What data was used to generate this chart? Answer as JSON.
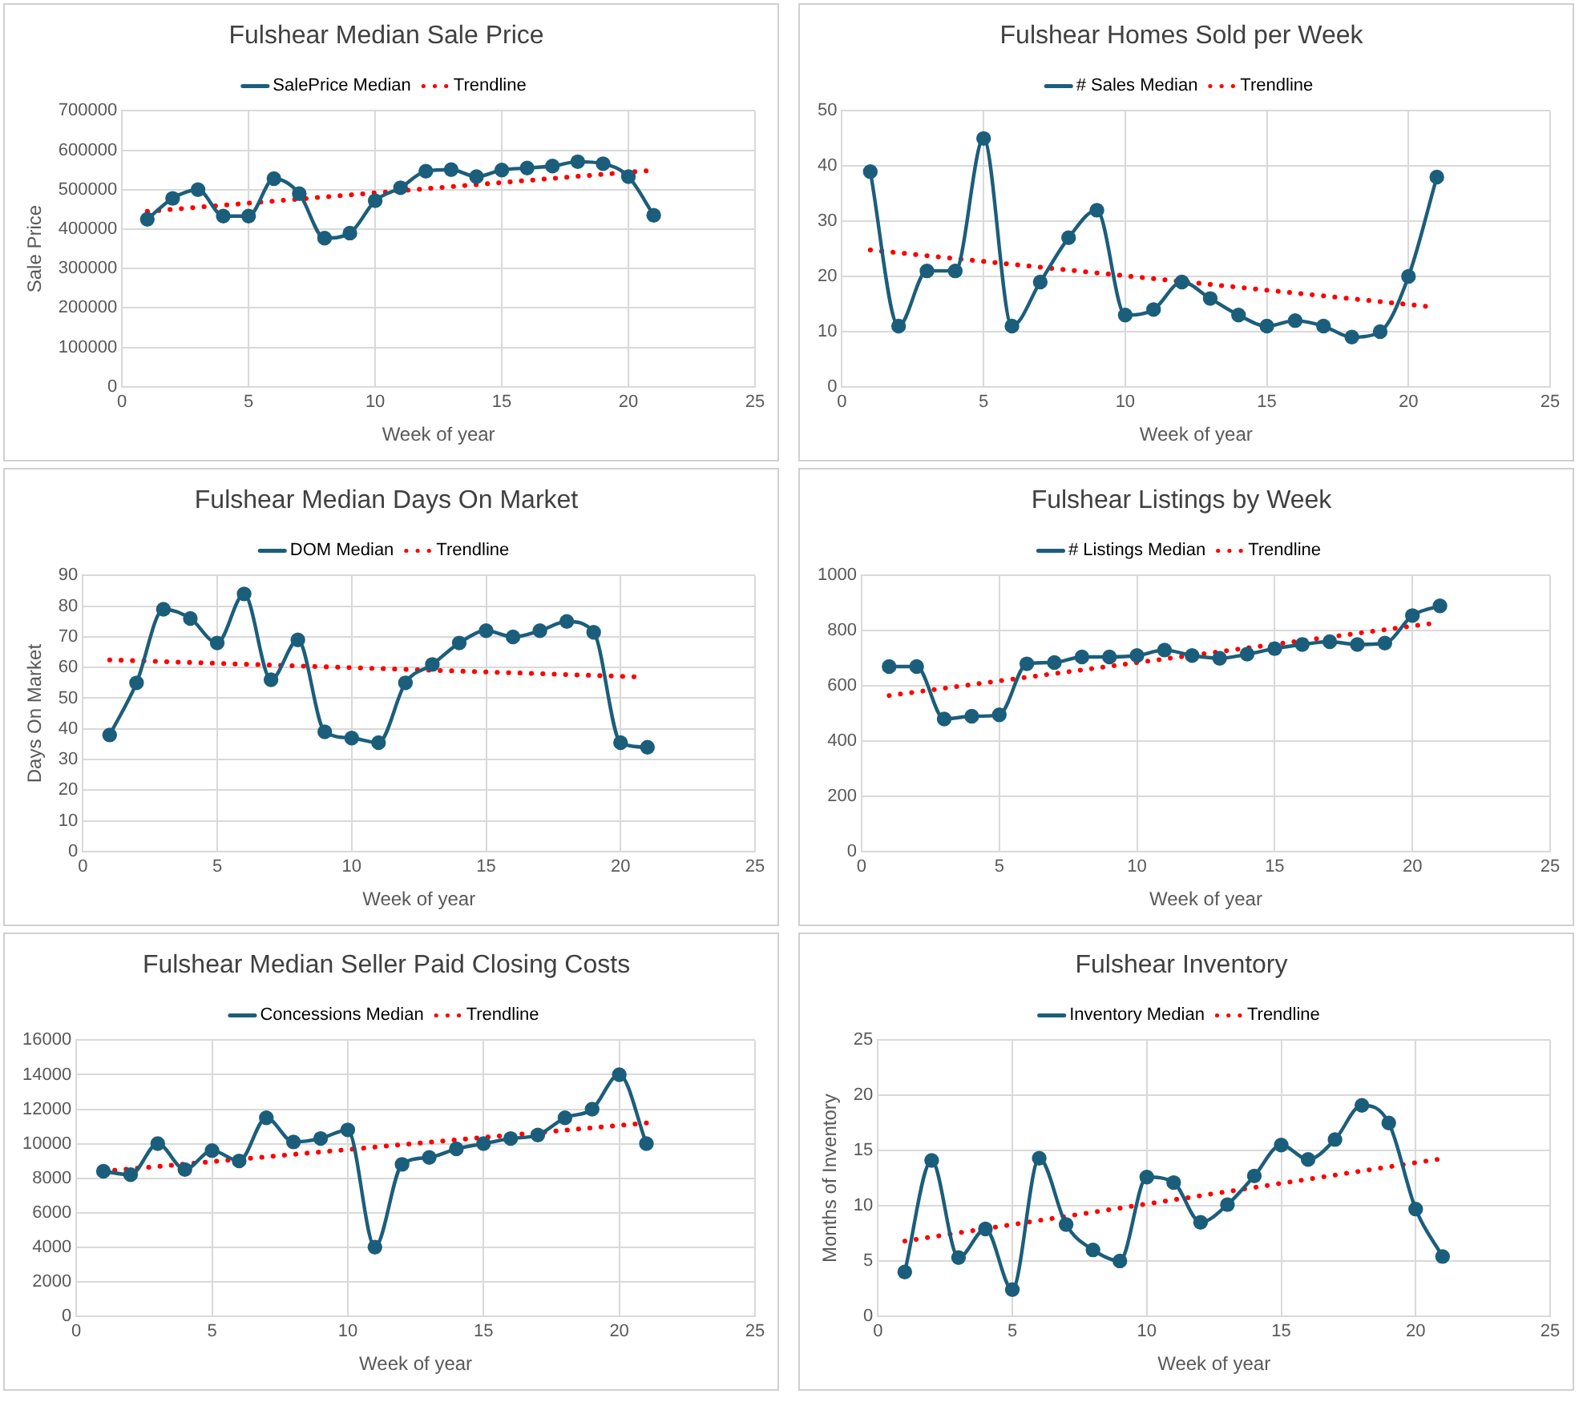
{
  "chart_data": [
    {
      "type": "line",
      "title": "Fulshear Median Sale Price",
      "xlabel": "Week of year",
      "ylabel": "Sale Price",
      "xlim": [
        0,
        25
      ],
      "xticks": [
        0,
        5,
        10,
        15,
        20,
        25
      ],
      "ylim": [
        0,
        700000
      ],
      "yticks": [
        0,
        100000,
        200000,
        300000,
        400000,
        500000,
        600000,
        700000
      ],
      "grid": true,
      "legend": "top",
      "series": [
        {
          "name": "SalePrice Median",
          "color": "#1b5e7b",
          "marker": "circle",
          "line_style": "solid",
          "x": [
            1,
            2,
            3,
            4,
            5,
            6,
            7,
            8,
            9,
            10,
            11,
            12,
            13,
            14,
            15,
            16,
            17,
            18,
            19,
            20,
            21
          ],
          "values": [
            425000,
            478000,
            500000,
            433000,
            433000,
            528000,
            490000,
            377000,
            390000,
            472000,
            505000,
            547000,
            551000,
            533000,
            550000,
            555000,
            560000,
            571000,
            566000,
            533000,
            435000
          ]
        },
        {
          "name": "Trendline",
          "color": "#ff0000",
          "marker": "none",
          "line_style": "dotted",
          "x": [
            1,
            20.7
          ],
          "values": [
            445000,
            548000
          ]
        }
      ]
    },
    {
      "type": "line",
      "title": "Fulshear Homes Sold per Week",
      "xlabel": "Week of year",
      "xlim": [
        0,
        25
      ],
      "xticks": [
        0,
        5,
        10,
        15,
        20,
        25
      ],
      "ylim": [
        0,
        50
      ],
      "yticks": [
        0,
        10,
        20,
        30,
        40,
        50
      ],
      "grid": true,
      "legend": "top",
      "series": [
        {
          "name": "# Sales Median",
          "color": "#1b5e7b",
          "marker": "circle",
          "line_style": "solid",
          "x": [
            1,
            2,
            3,
            4,
            5,
            6,
            7,
            8,
            9,
            10,
            11,
            12,
            13,
            14,
            15,
            16,
            17,
            18,
            19,
            20,
            21
          ],
          "values": [
            39,
            11,
            21,
            21,
            45,
            11,
            19,
            27,
            32,
            13,
            14,
            19,
            16,
            13,
            11,
            12,
            11,
            9,
            10,
            20,
            38
          ]
        },
        {
          "name": "Trendline",
          "color": "#ff0000",
          "marker": "none",
          "line_style": "dotted",
          "x": [
            1,
            20.6
          ],
          "values": [
            24.8,
            14.6
          ]
        }
      ]
    },
    {
      "type": "line",
      "title": "Fulshear Median Days On Market",
      "xlabel": "Week of year",
      "ylabel": "Days On Market",
      "xlim": [
        0,
        25
      ],
      "xticks": [
        0,
        5,
        10,
        15,
        20,
        25
      ],
      "ylim": [
        0,
        90
      ],
      "yticks": [
        0,
        10,
        20,
        30,
        40,
        50,
        60,
        70,
        80,
        90
      ],
      "grid": true,
      "legend": "top",
      "series": [
        {
          "name": "DOM Median",
          "color": "#1b5e7b",
          "marker": "circle",
          "line_style": "solid",
          "x": [
            1,
            2,
            3,
            4,
            5,
            6,
            7,
            8,
            9,
            10,
            11,
            12,
            13,
            14,
            15,
            16,
            17,
            18,
            19,
            20,
            21
          ],
          "values": [
            38,
            55,
            79,
            76,
            68,
            84,
            56,
            69,
            39,
            37,
            35.5,
            55,
            61,
            68,
            72,
            70,
            72,
            75,
            71.5,
            35.5,
            34
          ]
        },
        {
          "name": "Trendline",
          "color": "#ff0000",
          "marker": "none",
          "line_style": "dotted",
          "x": [
            1,
            20.5
          ],
          "values": [
            62.5,
            57
          ]
        }
      ]
    },
    {
      "type": "line",
      "title": "Fulshear Listings by Week",
      "xlabel": "Week of year",
      "xlim": [
        0,
        25
      ],
      "xticks": [
        0,
        5,
        10,
        15,
        20,
        25
      ],
      "ylim": [
        0,
        1000
      ],
      "yticks": [
        0,
        200,
        400,
        600,
        800,
        1000
      ],
      "grid": true,
      "legend": "top",
      "series": [
        {
          "name": "# Listings Median",
          "color": "#1b5e7b",
          "marker": "circle",
          "line_style": "solid",
          "x": [
            1,
            2,
            3,
            4,
            5,
            6,
            7,
            8,
            9,
            10,
            11,
            12,
            13,
            14,
            15,
            16,
            17,
            18,
            19,
            20,
            21
          ],
          "values": [
            670,
            670,
            480,
            490,
            495,
            680,
            685,
            705,
            705,
            710,
            730,
            710,
            700,
            715,
            735,
            750,
            760,
            750,
            755,
            855,
            890
          ]
        },
        {
          "name": "Trendline",
          "color": "#ff0000",
          "marker": "none",
          "line_style": "dotted",
          "x": [
            1,
            20.6
          ],
          "values": [
            565,
            825
          ]
        }
      ]
    },
    {
      "type": "line",
      "title": "Fulshear Median Seller Paid Closing Costs",
      "xlabel": "Week of year",
      "xlim": [
        0,
        25
      ],
      "xticks": [
        0,
        5,
        10,
        15,
        20,
        25
      ],
      "ylim": [
        0,
        16000
      ],
      "yticks": [
        0,
        2000,
        4000,
        6000,
        8000,
        10000,
        12000,
        14000,
        16000
      ],
      "grid": true,
      "legend": "top",
      "series": [
        {
          "name": "Concessions Median",
          "color": "#1b5e7b",
          "marker": "circle",
          "line_style": "solid",
          "x": [
            1,
            2,
            3,
            4,
            5,
            6,
            7,
            8,
            9,
            10,
            11,
            12,
            13,
            14,
            15,
            16,
            17,
            18,
            19,
            20,
            21
          ],
          "values": [
            8400,
            8200,
            10000,
            8500,
            9600,
            9000,
            11500,
            10100,
            10300,
            10800,
            4000,
            8800,
            9200,
            9700,
            10000,
            10300,
            10500,
            11500,
            12000,
            14000,
            10000
          ]
        },
        {
          "name": "Trendline",
          "color": "#ff0000",
          "marker": "none",
          "line_style": "dotted",
          "x": [
            1,
            21
          ],
          "values": [
            8400,
            11200
          ]
        }
      ]
    },
    {
      "type": "line",
      "title": "Fulshear Inventory",
      "xlabel": "Week of year",
      "ylabel": "Months of Inventory",
      "xlim": [
        0,
        25
      ],
      "xticks": [
        0,
        5,
        10,
        15,
        20,
        25
      ],
      "ylim": [
        0,
        25
      ],
      "yticks": [
        0,
        5,
        10,
        15,
        20,
        25
      ],
      "grid": true,
      "legend": "top",
      "series": [
        {
          "name": "Inventory Median",
          "color": "#1b5e7b",
          "marker": "circle",
          "line_style": "solid",
          "x": [
            1,
            2,
            3,
            4,
            5,
            6,
            7,
            8,
            9,
            10,
            11,
            12,
            13,
            14,
            15,
            16,
            17,
            18,
            19,
            20,
            21
          ],
          "values": [
            4,
            14.1,
            5.3,
            7.9,
            2.4,
            14.3,
            8.3,
            6,
            5,
            12.6,
            12.1,
            8.5,
            10.1,
            12.7,
            15.5,
            14.2,
            16,
            19.1,
            17.5,
            9.7,
            5.4
          ]
        },
        {
          "name": "Trendline",
          "color": "#ff0000",
          "marker": "none",
          "line_style": "dotted",
          "x": [
            1,
            20.8
          ],
          "values": [
            6.8,
            14.2
          ]
        }
      ]
    }
  ]
}
